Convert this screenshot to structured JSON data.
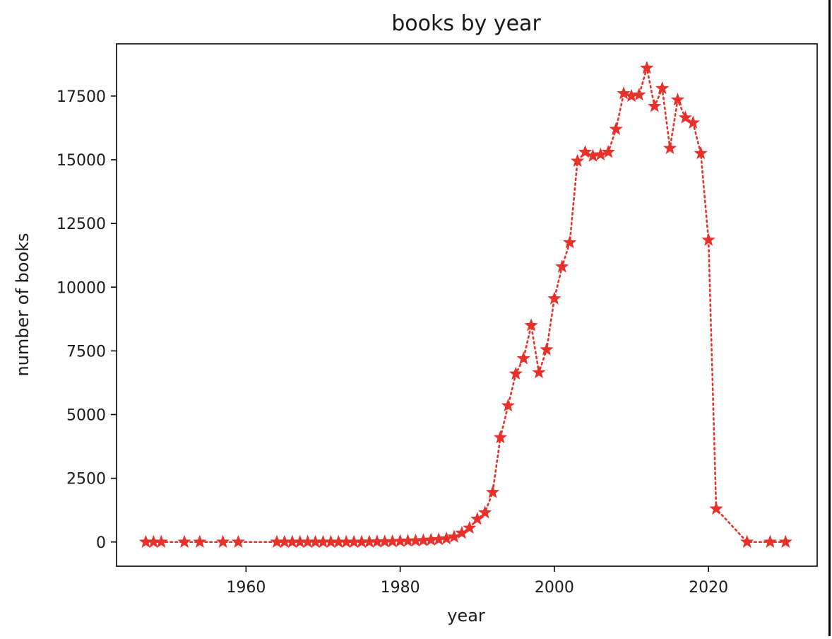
{
  "chart_data": {
    "type": "line",
    "title": "books by year",
    "xlabel": "year",
    "ylabel": "number of books",
    "xlim": [
      1943.2,
      2034.1
    ],
    "ylim": [
      -950,
      19550
    ],
    "xticks": [
      1960,
      1980,
      2000,
      2020
    ],
    "yticks": [
      0,
      2500,
      5000,
      7500,
      10000,
      12500,
      15000,
      17500
    ],
    "grid": false,
    "legend": null,
    "series": [
      {
        "color": "#e8312a",
        "line_style": "dotted",
        "marker": "star",
        "x": [
          1947,
          1948,
          1949,
          1952,
          1954,
          1957,
          1959,
          1964,
          1965,
          1966,
          1967,
          1968,
          1969,
          1970,
          1971,
          1972,
          1973,
          1974,
          1975,
          1976,
          1977,
          1978,
          1979,
          1980,
          1981,
          1982,
          1983,
          1984,
          1985,
          1986,
          1987,
          1988,
          1989,
          1990,
          1991,
          1992,
          1993,
          1994,
          1995,
          1996,
          1997,
          1998,
          1999,
          2000,
          2001,
          2002,
          2003,
          2004,
          2005,
          2006,
          2007,
          2008,
          2009,
          2010,
          2011,
          2012,
          2013,
          2014,
          2015,
          2016,
          2017,
          2018,
          2019,
          2020,
          2021,
          2025,
          2028,
          2030
        ],
        "y": [
          0,
          0,
          0,
          0,
          0,
          0,
          0,
          0,
          0,
          0,
          0,
          0,
          0,
          0,
          0,
          0,
          0,
          0,
          0,
          5,
          10,
          15,
          20,
          30,
          40,
          50,
          60,
          80,
          100,
          130,
          200,
          350,
          550,
          900,
          1150,
          1950,
          4100,
          5350,
          6600,
          7200,
          8500,
          6650,
          7550,
          9550,
          10800,
          11750,
          14950,
          15300,
          15150,
          15200,
          15300,
          16200,
          17600,
          17500,
          17550,
          18600,
          17100,
          17800,
          15450,
          17350,
          16650,
          16450,
          15250,
          11850,
          1300,
          0,
          0,
          0
        ]
      }
    ]
  }
}
